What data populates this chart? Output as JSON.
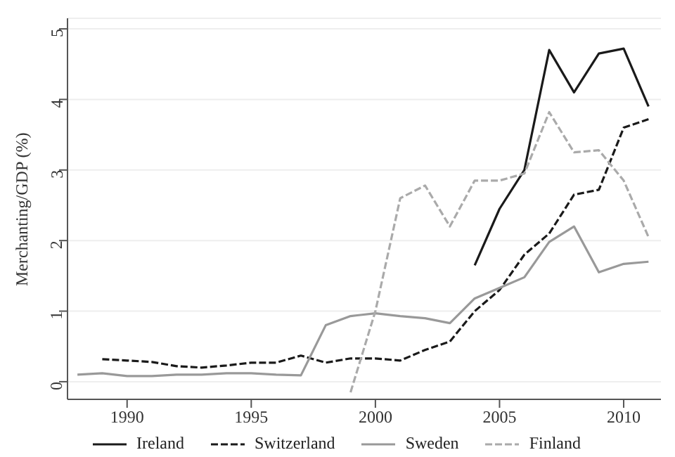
{
  "chart_data": {
    "type": "line",
    "ylabel": "Merchanting/GDP (%)",
    "xlim": [
      1987.6,
      2011.5
    ],
    "xticks": [
      1990,
      1995,
      2000,
      2005,
      2010
    ],
    "ylim": [
      -0.25,
      5.15
    ],
    "yticks": [
      0,
      1,
      2,
      3,
      4,
      5
    ],
    "grid": "y",
    "legend": "bottom",
    "marker": "none",
    "series": [
      {
        "name": "Ireland",
        "color": "#1a1a1a",
        "line_style": "solid",
        "x": [
          2004,
          2005,
          2006,
          2007,
          2008,
          2009,
          2010,
          2011
        ],
        "values": [
          1.65,
          2.45,
          3.0,
          4.7,
          4.1,
          4.65,
          4.72,
          3.9
        ]
      },
      {
        "name": "Switzerland",
        "color": "#1a1a1a",
        "line_style": "dashed",
        "x": [
          1989,
          1990,
          1991,
          1992,
          1993,
          1994,
          1995,
          1996,
          1997,
          1998,
          1999,
          2000,
          2001,
          2002,
          2003,
          2004,
          2005,
          2006,
          2007,
          2008,
          2009,
          2010,
          2011
        ],
        "values": [
          0.32,
          0.3,
          0.28,
          0.22,
          0.2,
          0.23,
          0.27,
          0.27,
          0.37,
          0.27,
          0.33,
          0.33,
          0.3,
          0.45,
          0.57,
          1.0,
          1.3,
          1.8,
          2.1,
          2.65,
          2.72,
          3.6,
          3.72
        ]
      },
      {
        "name": "Sweden",
        "color": "#999999",
        "line_style": "solid",
        "x": [
          1988,
          1989,
          1990,
          1991,
          1992,
          1993,
          1994,
          1995,
          1996,
          1997,
          1998,
          1999,
          2000,
          2001,
          2002,
          2003,
          2004,
          2005,
          2006,
          2007,
          2008,
          2009,
          2010,
          2011
        ],
        "values": [
          0.1,
          0.12,
          0.08,
          0.08,
          0.1,
          0.1,
          0.12,
          0.12,
          0.1,
          0.09,
          0.8,
          0.93,
          0.97,
          0.93,
          0.9,
          0.83,
          1.18,
          1.33,
          1.48,
          1.98,
          2.2,
          1.55,
          1.67,
          1.7
        ]
      },
      {
        "name": "Finland",
        "color": "#aaaaaa",
        "line_style": "dashed",
        "x": [
          1999,
          2000,
          2001,
          2002,
          2003,
          2004,
          2005,
          2006,
          2007,
          2008,
          2009,
          2010,
          2011
        ],
        "values": [
          -0.15,
          1.0,
          2.6,
          2.78,
          2.2,
          2.85,
          2.85,
          2.95,
          3.82,
          3.25,
          3.28,
          2.85,
          2.05
        ]
      }
    ]
  }
}
